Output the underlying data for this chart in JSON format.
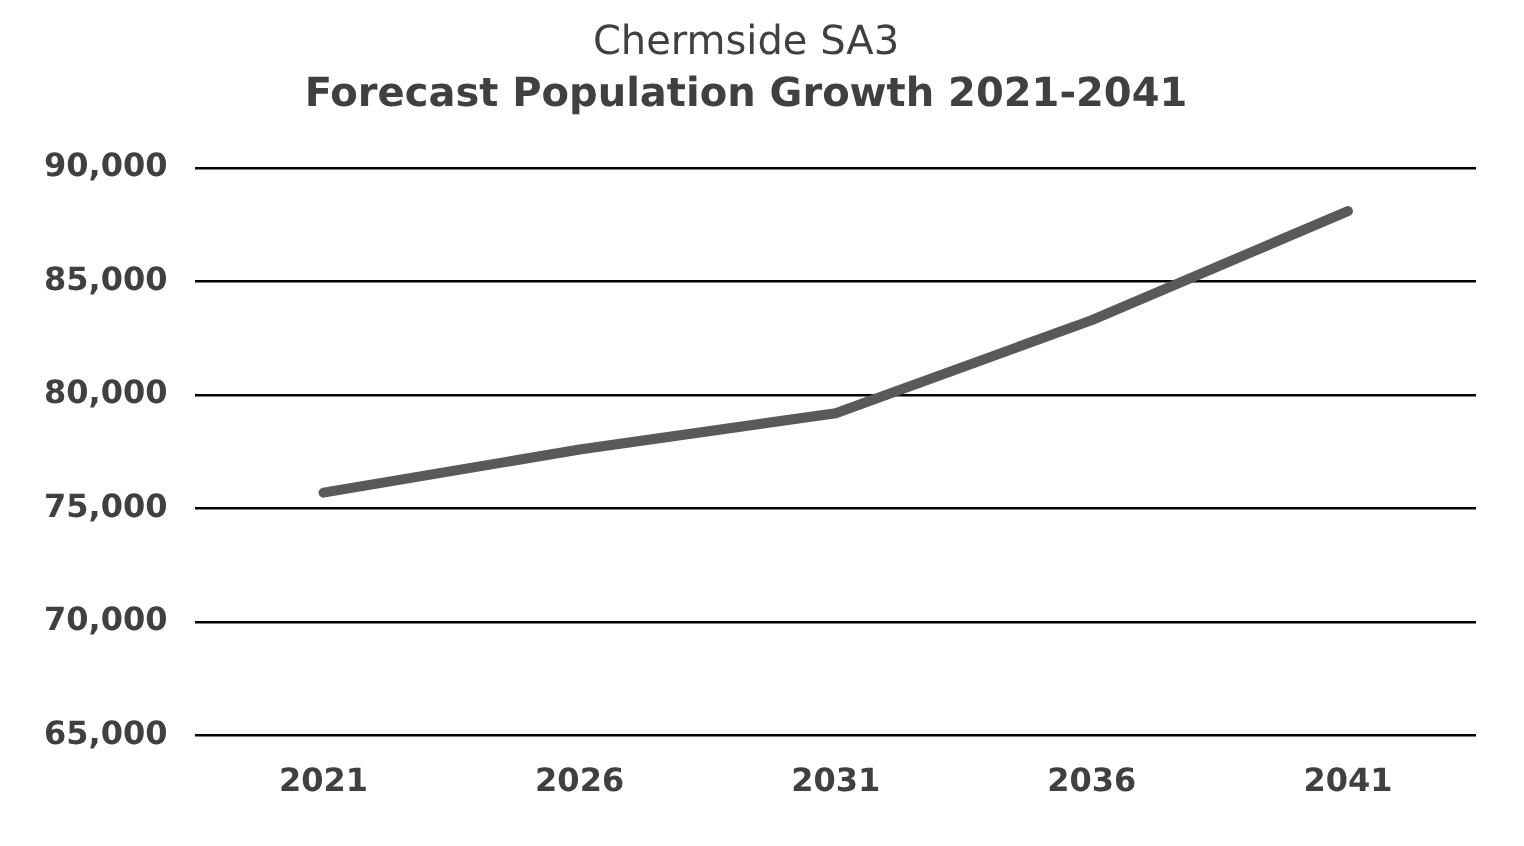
{
  "chart_data": {
    "type": "line",
    "title": "Chermside SA3",
    "subtitle": "Forecast Population Growth 2021-2041",
    "categories": [
      "2021",
      "2026",
      "2031",
      "2036",
      "2041"
    ],
    "series": [
      {
        "color": "#595959",
        "values": [
          75700,
          77600,
          79200,
          83300,
          88100
        ]
      }
    ],
    "ylim": [
      65000,
      90000
    ],
    "yticks": [
      {
        "value": 65000,
        "label": "65,000"
      },
      {
        "value": 70000,
        "label": "70,000"
      },
      {
        "value": 75000,
        "label": "75,000"
      },
      {
        "value": 80000,
        "label": "80,000"
      },
      {
        "value": 85000,
        "label": "85,000"
      },
      {
        "value": 90000,
        "label": "90,000"
      }
    ],
    "grid": "y",
    "legend": false,
    "marker": "none",
    "line_style": "solid"
  }
}
